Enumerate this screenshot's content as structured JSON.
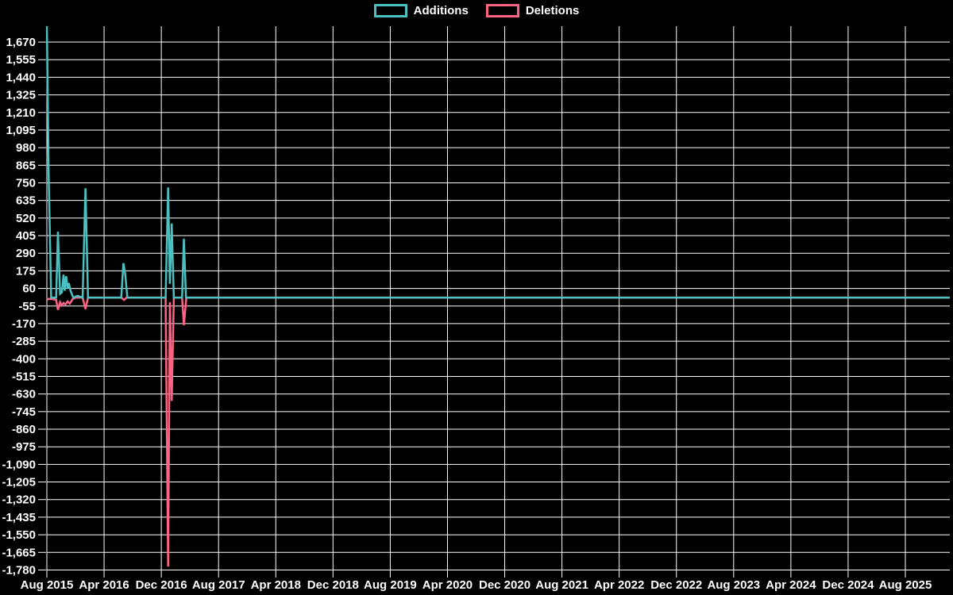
{
  "colors": {
    "background": "#000000",
    "grid": "#ffffff",
    "text": "#ffffff",
    "additions": "#4bc0c0",
    "deletions": "#ff6384"
  },
  "legend": {
    "items": [
      {
        "label": "Additions",
        "color": "#4bc0c0"
      },
      {
        "label": "Deletions",
        "color": "#ff6384"
      }
    ]
  },
  "chart_data": {
    "type": "line",
    "title": "",
    "xlabel": "",
    "ylabel": "",
    "x_axis": {
      "kind": "time",
      "start": "Aug 2015",
      "end": "Aug 2025",
      "tick_labels": [
        "Aug 2015",
        "Apr 2016",
        "Dec 2016",
        "Aug 2017",
        "Apr 2018",
        "Dec 2018",
        "Aug 2019",
        "Apr 2020",
        "Dec 2020",
        "Aug 2021",
        "Apr 2022",
        "Dec 2022",
        "Aug 2023",
        "Apr 2024",
        "Dec 2024",
        "Aug 2025"
      ],
      "tick_interval_months": 8,
      "plot_end_month_offset": 126.2
    },
    "y_axis": {
      "min": -1780,
      "max": 1670,
      "step": 115,
      "tick_values": [
        1670,
        1555,
        1440,
        1325,
        1210,
        1095,
        980,
        865,
        750,
        635,
        520,
        405,
        290,
        175,
        60,
        -55,
        -170,
        -285,
        -400,
        -515,
        -630,
        -745,
        -860,
        -975,
        -1090,
        -1205,
        -1320,
        -1435,
        -1550,
        -1665,
        -1780
      ]
    },
    "grid": true,
    "legend_position": "top",
    "series": [
      {
        "name": "Additions",
        "color": "#4bc0c0",
        "note": "points are [months since Aug 2015, lines added]; first peak clipped at top of plot (~1775)",
        "points": [
          [
            0,
            1775
          ],
          [
            0.25,
            815
          ],
          [
            0.6,
            0
          ],
          [
            1.3,
            0
          ],
          [
            1.55,
            430
          ],
          [
            1.85,
            25
          ],
          [
            2.1,
            35
          ],
          [
            2.33,
            150
          ],
          [
            2.5,
            45
          ],
          [
            2.7,
            140
          ],
          [
            2.9,
            60
          ],
          [
            3.07,
            95
          ],
          [
            3.33,
            42
          ],
          [
            3.7,
            0
          ],
          [
            4.3,
            12
          ],
          [
            5.0,
            0
          ],
          [
            5.4,
            715
          ],
          [
            5.75,
            0
          ],
          [
            10.4,
            0
          ],
          [
            10.7,
            225
          ],
          [
            10.95,
            155
          ],
          [
            11.25,
            0
          ],
          [
            16.6,
            0
          ],
          [
            16.95,
            720
          ],
          [
            17.2,
            90
          ],
          [
            17.45,
            485
          ],
          [
            17.75,
            0
          ],
          [
            18.9,
            0
          ],
          [
            19.15,
            385
          ],
          [
            19.45,
            0
          ],
          [
            126.2,
            0
          ]
        ]
      },
      {
        "name": "Deletions",
        "color": "#ff6384",
        "note": "points are [months since Aug 2015, lines deleted (negative)]",
        "points": [
          [
            0,
            -15
          ],
          [
            0.3,
            -8
          ],
          [
            0.9,
            -10
          ],
          [
            1.3,
            -15
          ],
          [
            1.55,
            -80
          ],
          [
            1.85,
            -30
          ],
          [
            2.1,
            -50
          ],
          [
            2.33,
            -35
          ],
          [
            2.6,
            -45
          ],
          [
            2.9,
            -25
          ],
          [
            3.2,
            -40
          ],
          [
            3.6,
            -10
          ],
          [
            4.0,
            0
          ],
          [
            5.0,
            0
          ],
          [
            5.4,
            -75
          ],
          [
            5.75,
            0
          ],
          [
            10.4,
            0
          ],
          [
            10.8,
            -15
          ],
          [
            11.15,
            0
          ],
          [
            16.6,
            0
          ],
          [
            16.95,
            -1758
          ],
          [
            17.2,
            -30
          ],
          [
            17.45,
            -675
          ],
          [
            17.75,
            0
          ],
          [
            18.9,
            0
          ],
          [
            19.15,
            -180
          ],
          [
            19.5,
            0
          ],
          [
            126.2,
            0
          ]
        ]
      }
    ]
  }
}
